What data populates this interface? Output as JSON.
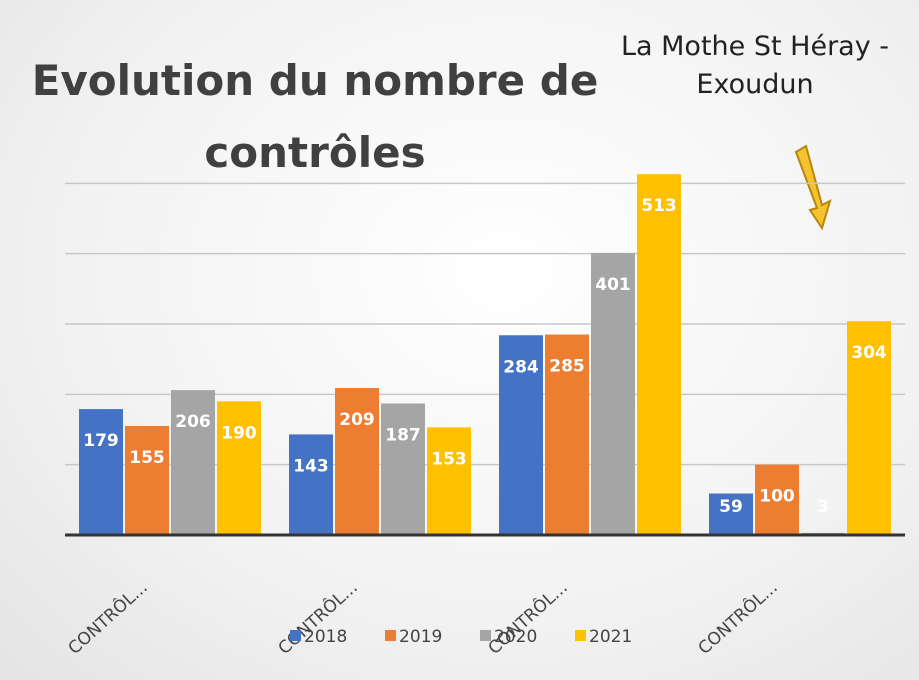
{
  "chart_data": {
    "type": "bar",
    "title": "Evolution du nombre de contrôles",
    "annotation": "La Mothe St Héray - Exoudun",
    "categories": [
      "CONTRÔL...",
      "CONTRÔL...",
      "CONTRÔL...",
      "CONTRÔL..."
    ],
    "series": [
      {
        "name": "2018",
        "color": "#4472c4",
        "values": [
          179,
          143,
          284,
          59
        ]
      },
      {
        "name": "2019",
        "color": "#ed7d31",
        "values": [
          155,
          209,
          285,
          100
        ]
      },
      {
        "name": "2020",
        "color": "#a5a5a5",
        "values": [
          206,
          187,
          401,
          3
        ]
      },
      {
        "name": "2021",
        "color": "#ffc000",
        "values": [
          190,
          153,
          513,
          304
        ]
      }
    ],
    "ylim": [
      0,
      600
    ],
    "yticks": [
      0,
      100,
      200,
      300,
      400,
      500
    ],
    "grid": true,
    "legend": "bottom"
  }
}
